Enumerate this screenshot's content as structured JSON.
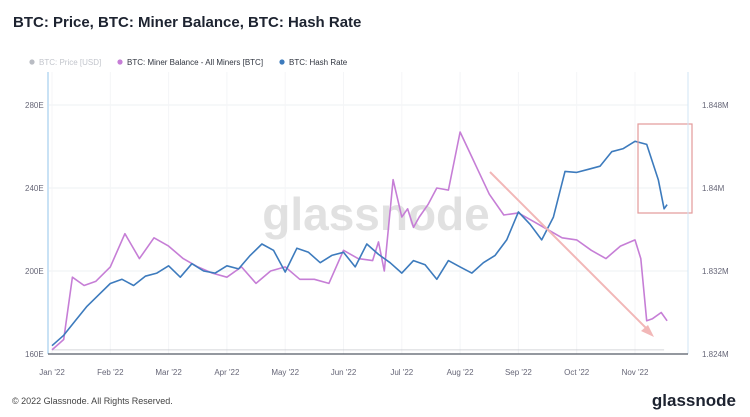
{
  "title": "BTC: Price, BTC: Miner Balance, BTC: Hash Rate",
  "footer": "© 2022 Glassnode. All Rights Reserved.",
  "brand": "glassnode",
  "watermark": "glassnode",
  "colors": {
    "price": "#b9bcc3",
    "miner_balance": "#c67ed6",
    "hash_rate": "#3d7bbd",
    "highlight_box": "#e39a9a",
    "arrow": "#f2b7b7"
  },
  "chart_data": {
    "type": "line",
    "title": "BTC: Price, BTC: Miner Balance, BTC: Hash Rate",
    "legend_position": "top-left",
    "grid": true,
    "x_ticks": [
      "Jan '22",
      "Feb '22",
      "Mar '22",
      "Apr '22",
      "May '22",
      "Jun '22",
      "Jul '22",
      "Aug '22",
      "Sep '22",
      "Oct '22",
      "Nov '22"
    ],
    "left_axis": {
      "ticks": [
        "280E",
        "240E",
        "200E",
        "160E"
      ],
      "values": [
        280,
        240,
        200,
        160
      ],
      "ylim": [
        160,
        280
      ]
    },
    "right_axis": {
      "ticks": [
        "1.848M",
        "1.84M",
        "1.832M",
        "1.824M"
      ],
      "values": [
        1.848,
        1.84,
        1.832,
        1.824
      ],
      "ylim": [
        1.824,
        1.848
      ]
    },
    "series": [
      {
        "name": "BTC: Price [USD]",
        "axis": "right",
        "disabled": true,
        "x": [
          0,
          10.5
        ],
        "values": [
          1.8244,
          1.8244
        ]
      },
      {
        "name": "BTC: Miner Balance - All Miners [BTC]",
        "axis": "left",
        "x": [
          0,
          0.2,
          0.35,
          0.55,
          0.75,
          1.0,
          1.25,
          1.5,
          1.75,
          2.0,
          2.25,
          2.5,
          2.75,
          3.0,
          3.25,
          3.5,
          3.75,
          4.0,
          4.25,
          4.5,
          4.75,
          5.0,
          5.25,
          5.5,
          5.6,
          5.7,
          5.85,
          6.0,
          6.1,
          6.2,
          6.3,
          6.45,
          6.6,
          6.8,
          7.0,
          7.2,
          7.3,
          7.5,
          7.75,
          8.0,
          8.25,
          8.5,
          8.75,
          9.0,
          9.25,
          9.5,
          9.75,
          10.0,
          10.1,
          10.2,
          10.3,
          10.45,
          10.55
        ],
        "values": [
          162,
          167,
          197,
          193,
          195,
          202,
          218,
          206,
          216,
          212,
          206,
          202,
          199,
          197,
          202,
          194,
          200,
          202,
          196,
          196,
          194,
          210,
          206,
          205,
          214,
          200,
          244,
          226,
          230,
          221,
          226,
          232,
          240,
          239,
          267,
          255,
          249,
          237,
          227,
          228,
          224,
          220,
          216,
          215,
          210,
          206,
          212,
          215,
          206,
          176,
          177,
          180,
          176
        ]
      },
      {
        "name": "BTC: Hash Rate",
        "axis": "right",
        "x": [
          0,
          0.2,
          0.4,
          0.6,
          0.8,
          1.0,
          1.2,
          1.4,
          1.6,
          1.8,
          2.0,
          2.2,
          2.4,
          2.6,
          2.8,
          3.0,
          3.2,
          3.4,
          3.6,
          3.8,
          4.0,
          4.2,
          4.4,
          4.6,
          4.8,
          5.0,
          5.2,
          5.4,
          5.6,
          5.8,
          6.0,
          6.2,
          6.4,
          6.6,
          6.8,
          7.0,
          7.2,
          7.4,
          7.6,
          7.8,
          8.0,
          8.2,
          8.4,
          8.6,
          8.8,
          9.0,
          9.2,
          9.4,
          9.6,
          9.8,
          10.0,
          10.2,
          10.4,
          10.5,
          10.55
        ],
        "values": [
          1.8248,
          1.8258,
          1.8272,
          1.8286,
          1.8297,
          1.8308,
          1.8312,
          1.8306,
          1.8315,
          1.8318,
          1.8325,
          1.8314,
          1.8327,
          1.832,
          1.8318,
          1.8325,
          1.8322,
          1.8335,
          1.8346,
          1.834,
          1.8319,
          1.8342,
          1.8338,
          1.8328,
          1.8335,
          1.8338,
          1.8324,
          1.8346,
          1.8336,
          1.8328,
          1.8318,
          1.833,
          1.8326,
          1.8312,
          1.833,
          1.8324,
          1.8318,
          1.8328,
          1.8335,
          1.835,
          1.8377,
          1.8365,
          1.835,
          1.8372,
          1.8416,
          1.8415,
          1.8418,
          1.8421,
          1.8435,
          1.8438,
          1.8445,
          1.8442,
          1.8408,
          1.838,
          1.8384
        ]
      }
    ]
  }
}
